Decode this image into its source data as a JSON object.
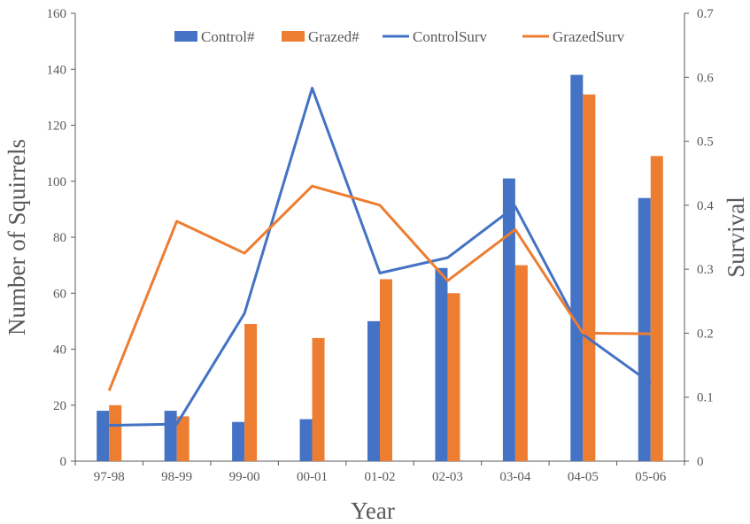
{
  "chart_data": {
    "type": "bar",
    "categories": [
      "97-98",
      "98-99",
      "99-00",
      "00-01",
      "01-02",
      "02-03",
      "03-04",
      "04-05",
      "05-06"
    ],
    "series": [
      {
        "name": "Control#",
        "type": "bar",
        "axis": "left",
        "color": "#4472C4",
        "values": [
          18,
          18,
          14,
          15,
          50,
          69,
          101,
          138,
          94
        ]
      },
      {
        "name": "Grazed#",
        "type": "bar",
        "axis": "left",
        "color": "#ED7D31",
        "values": [
          20,
          16,
          49,
          44,
          65,
          60,
          70,
          131,
          109
        ]
      },
      {
        "name": "ControlSurv",
        "type": "line",
        "axis": "right",
        "color": "#4472C4",
        "values": [
          0.056,
          0.058,
          0.231,
          0.583,
          0.294,
          0.318,
          0.398,
          0.198,
          0.122
        ]
      },
      {
        "name": "GrazedSurv",
        "type": "line",
        "axis": "right",
        "color": "#ED7D31",
        "values": [
          0.11,
          0.375,
          0.325,
          0.43,
          0.4,
          0.282,
          0.362,
          0.2,
          0.199
        ]
      }
    ],
    "xlabel": "Year",
    "ylabel": "Number of Squirrels",
    "y2label": "Survival",
    "ylim": [
      0,
      160
    ],
    "y2lim": [
      0,
      0.7
    ],
    "yticks": [
      "0",
      "20",
      "40",
      "60",
      "80",
      "100",
      "120",
      "140",
      "160"
    ],
    "y2ticks": [
      "0",
      "0.1",
      "0.2",
      "0.3",
      "0.4",
      "0.5",
      "0.6",
      "0.7"
    ],
    "legend_position": "top",
    "grid": false
  }
}
